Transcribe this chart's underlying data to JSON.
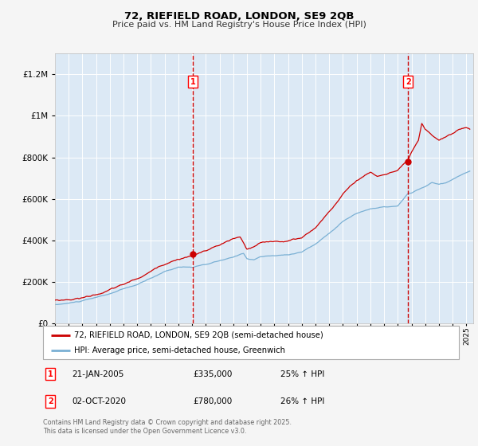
{
  "title1": "72, RIEFIELD ROAD, LONDON, SE9 2QB",
  "title2": "Price paid vs. HM Land Registry's House Price Index (HPI)",
  "bg_color": "#dce9f5",
  "fig_bg_color": "#f5f5f5",
  "line1_color": "#cc0000",
  "line2_color": "#7ab0d4",
  "vline_color": "#cc0000",
  "legend1": "72, RIEFIELD ROAD, LONDON, SE9 2QB (semi-detached house)",
  "legend2": "HPI: Average price, semi-detached house, Greenwich",
  "label1_date": "21-JAN-2005",
  "label1_price": "£335,000",
  "label1_hpi": "25% ↑ HPI",
  "label2_date": "02-OCT-2020",
  "label2_price": "£780,000",
  "label2_hpi": "26% ↑ HPI",
  "footnote": "Contains HM Land Registry data © Crown copyright and database right 2025.\nThis data is licensed under the Open Government Licence v3.0.",
  "ylim_max": 1300000,
  "sale1_year": 2005.06,
  "sale1_value": 335000,
  "sale2_year": 2020.75,
  "sale2_value": 780000,
  "xlim_min": 1995,
  "xlim_max": 2025.5
}
